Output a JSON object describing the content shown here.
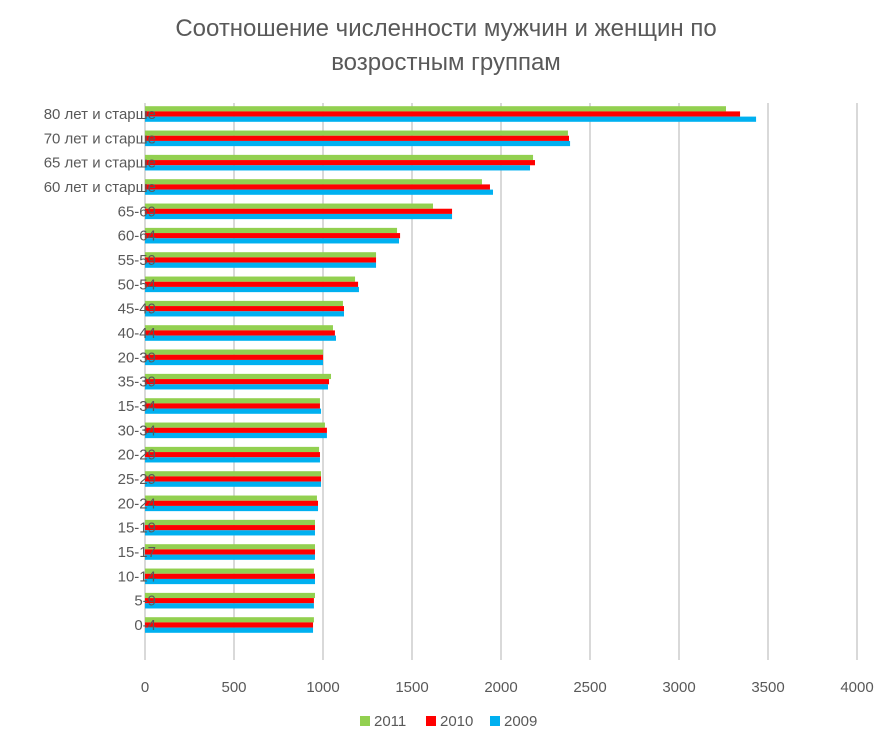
{
  "chart_data": {
    "type": "bar",
    "orientation": "horizontal",
    "title_lines": [
      "Соотношение численности мужчин и женщин по",
      "возростным группам"
    ],
    "categories": [
      "80 лет и старше",
      "70 лет и старше",
      "65 лет и старше",
      "60 лет и старше",
      "65-69",
      "60-64",
      "55-59",
      "50-54",
      "45-49",
      "40-44",
      "20-39",
      "35-39",
      "15-34",
      "30-34",
      "20-29",
      "25-29",
      "20-24",
      "15-19",
      "15-17",
      "10-14",
      "5-9",
      "0-4"
    ],
    "series": [
      {
        "name": "2011",
        "color": "#92d050",
        "values": [
          3264,
          2376,
          2180,
          1893,
          1618,
          1416,
          1298,
          1180,
          1112,
          1056,
          1000,
          1045,
          983,
          1011,
          978,
          989,
          966,
          955,
          955,
          949,
          955,
          949
        ]
      },
      {
        "name": "2010",
        "color": "#ff0000",
        "values": [
          3343,
          2382,
          2191,
          1938,
          1725,
          1433,
          1298,
          1197,
          1118,
          1067,
          1000,
          1034,
          983,
          1022,
          983,
          989,
          972,
          955,
          955,
          955,
          949,
          944
        ]
      },
      {
        "name": "2009",
        "color": "#00b0f0",
        "values": [
          3433,
          2388,
          2163,
          1955,
          1725,
          1427,
          1298,
          1202,
          1118,
          1073,
          1000,
          1028,
          989,
          1022,
          983,
          989,
          972,
          955,
          955,
          955,
          949,
          944
        ]
      }
    ],
    "xlim": [
      0,
      4000
    ],
    "xticks": [
      0,
      500,
      1000,
      1500,
      2000,
      2500,
      3000,
      3500,
      4000
    ],
    "grid": true,
    "legend_position": "bottom",
    "legend_order": [
      "2011",
      "2010",
      "2009"
    ]
  }
}
